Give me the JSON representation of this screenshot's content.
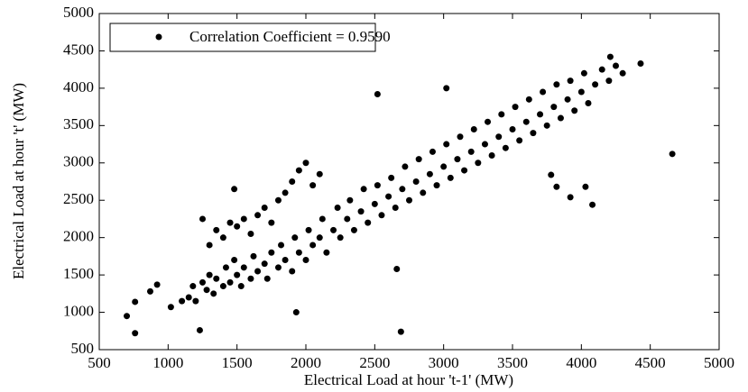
{
  "chart_data": {
    "type": "scatter",
    "x_label": "Electrical Load at hour 't-1' (MW)",
    "y_label": "Electrical Load at hour 't' (MW)",
    "xlim": [
      500,
      5000
    ],
    "xticks": [
      500,
      1000,
      1500,
      2000,
      2500,
      3000,
      3500,
      4000,
      4500,
      5000
    ],
    "ylim": [
      500,
      5000
    ],
    "yticks": [
      500,
      1000,
      1500,
      2000,
      2500,
      3000,
      3500,
      4000,
      4500,
      5000
    ],
    "grid": false,
    "legend": "upper-left",
    "series": [
      {
        "name": "Correlation Coefficient = 0.9590",
        "color": "#000000",
        "x": [
          1150,
          1180,
          1200,
          1250,
          1280,
          1300,
          1330,
          1350,
          1400,
          1420,
          1450,
          1480,
          1500,
          1530,
          1550,
          1600,
          1620,
          1650,
          1700,
          1720,
          1750,
          1800,
          1820,
          1850,
          1900,
          1920,
          1950,
          2000,
          2020,
          2050,
          2100,
          2120,
          2150,
          2200,
          2230,
          2250,
          2300,
          2320,
          2350,
          2400,
          2420,
          2450,
          2500,
          2520,
          2550,
          2600,
          2620,
          2650,
          2700,
          2720,
          2750,
          2800,
          2820,
          2850,
          2900,
          2920,
          2950,
          3000,
          3020,
          3050,
          3100,
          3120,
          3150,
          3200,
          3220,
          3250,
          3300,
          3320,
          3350,
          3400,
          3420,
          3450,
          3500,
          3520,
          3550,
          3600,
          3620,
          3650,
          3700,
          3720,
          3750,
          3800,
          3820,
          3850,
          3900,
          3920,
          3950,
          4000,
          4020,
          4050,
          4100,
          4150,
          4200,
          4250,
          4300,
          1300,
          1350,
          1400,
          1450,
          1500,
          1550,
          1600,
          1650,
          1700,
          1750,
          1800,
          1850,
          1900,
          1950,
          2000,
          2050,
          2100,
          700,
          760,
          760,
          870,
          920,
          1020,
          1100,
          1230,
          1250,
          1480,
          1930,
          2520,
          2660,
          2690,
          3020,
          3780,
          3820,
          3920,
          4030,
          4080,
          4210,
          4430,
          4660
        ],
        "y": [
          1200,
          1350,
          1150,
          1400,
          1300,
          1500,
          1250,
          1450,
          1350,
          1600,
          1400,
          1700,
          1500,
          1350,
          1600,
          1450,
          1750,
          1550,
          1650,
          1450,
          1800,
          1600,
          1900,
          1700,
          1550,
          2000,
          1800,
          1700,
          2100,
          1900,
          2000,
          2250,
          1800,
          2100,
          2400,
          2000,
          2250,
          2500,
          2100,
          2350,
          2650,
          2200,
          2450,
          2700,
          2300,
          2550,
          2800,
          2400,
          2650,
          2950,
          2500,
          2750,
          3050,
          2600,
          2850,
          3150,
          2700,
          2950,
          3250,
          2800,
          3050,
          3350,
          2900,
          3150,
          3450,
          3000,
          3250,
          3550,
          3100,
          3350,
          3650,
          3200,
          3450,
          3750,
          3300,
          3550,
          3850,
          3400,
          3650,
          3950,
          3500,
          3750,
          4050,
          3600,
          3850,
          4100,
          3700,
          3950,
          4200,
          3800,
          4050,
          4250,
          4100,
          4300,
          4200,
          1900,
          2100,
          2000,
          2200,
          2150,
          2250,
          2050,
          2300,
          2400,
          2200,
          2500,
          2600,
          2750,
          2900,
          3000,
          2700,
          2850,
          950,
          720,
          1140,
          1280,
          1370,
          1070,
          1150,
          760,
          2250,
          2650,
          1000,
          3920,
          1580,
          740,
          4000,
          2840,
          2680,
          2540,
          2680,
          2440,
          4420,
          4330,
          3120
        ]
      }
    ]
  }
}
